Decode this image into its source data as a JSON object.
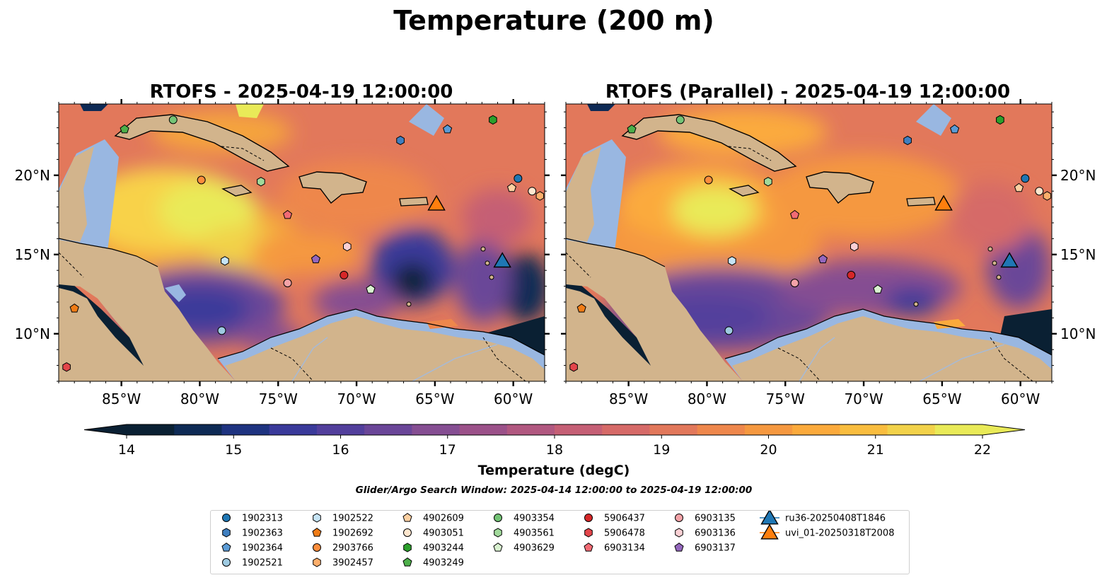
{
  "figure": {
    "suptitle": "Temperature (200 m)",
    "panels": [
      {
        "title": "RTOFS - 2025-04-19 12:00:00",
        "variant": "operational"
      },
      {
        "title": "RTOFS (Parallel) - 2025-04-19 12:00:00",
        "variant": "parallel"
      }
    ],
    "map_extent": {
      "lon_min": -89,
      "lon_max": -58,
      "lat_min": 7,
      "lat_max": 24.5
    },
    "lon_ticks": [
      -85,
      -80,
      -75,
      -70,
      -65,
      -60
    ],
    "lon_tick_labels": [
      "85°W",
      "80°W",
      "75°W",
      "70°W",
      "65°W",
      "60°W"
    ],
    "lat_ticks": [
      10,
      15,
      20
    ],
    "lat_tick_labels": [
      "10°N",
      "15°N",
      "20°N"
    ],
    "colors": {
      "land": "#d2b48c",
      "shelf": "#99b7e1",
      "coast": "#000000",
      "rivers": "#a7bad6"
    }
  },
  "colorbar": {
    "label": "Temperature (degC)",
    "ticks": [
      "14",
      "15",
      "16",
      "17",
      "18",
      "19",
      "20",
      "21",
      "22"
    ],
    "min": 14,
    "max": 22,
    "extend": "both",
    "colors": [
      "#0a2033",
      "#0e2a55",
      "#1e3380",
      "#3a3a9a",
      "#523f9c",
      "#6a4698",
      "#854e92",
      "#9b5189",
      "#b15880",
      "#c55f75",
      "#d66a68",
      "#e2785b",
      "#ee874c",
      "#f59840",
      "#fbaa3c",
      "#f9bd3f",
      "#f2d24a",
      "#e9ea58"
    ]
  },
  "search_window": "Glider/Argo Search Window: 2025-04-14 12:00:00 to 2025-04-19 12:00:00",
  "platforms": [
    {
      "id": "1902313",
      "marker": "circle",
      "color": "#1f77b4",
      "lon": -59.7,
      "lat": 19.8
    },
    {
      "id": "1902363",
      "marker": "hexagon",
      "color": "#3f7fc0",
      "lon": -67.2,
      "lat": 22.2
    },
    {
      "id": "1902364",
      "marker": "pentagon",
      "color": "#5b9bd5",
      "lon": -64.2,
      "lat": 22.9
    },
    {
      "id": "1902521",
      "marker": "circle",
      "color": "#9ecae1",
      "lon": -78.6,
      "lat": 10.2
    },
    {
      "id": "1902522",
      "marker": "hexagon",
      "color": "#c6e4f5",
      "lon": -78.4,
      "lat": 14.6
    },
    {
      "id": "1902692",
      "marker": "pentagon",
      "color": "#f07c16",
      "lon": -88.0,
      "lat": 11.6
    },
    {
      "id": "2903766",
      "marker": "circle",
      "color": "#fd8d3c",
      "lon": -79.9,
      "lat": 19.7
    },
    {
      "id": "3902457",
      "marker": "hexagon",
      "color": "#fdae6b",
      "lon": -58.3,
      "lat": 18.7
    },
    {
      "id": "4902609",
      "marker": "pentagon",
      "color": "#fdd0a2",
      "lon": -60.1,
      "lat": 19.2
    },
    {
      "id": "4903051",
      "marker": "circle",
      "color": "#fee6ce",
      "lon": -58.8,
      "lat": 19.0
    },
    {
      "id": "4903244",
      "marker": "hexagon",
      "color": "#2ca02c",
      "lon": -61.3,
      "lat": 23.5
    },
    {
      "id": "4903249",
      "marker": "pentagon",
      "color": "#4daf4a",
      "lon": -84.8,
      "lat": 22.9
    },
    {
      "id": "4903354",
      "marker": "circle",
      "color": "#74c476",
      "lon": -81.7,
      "lat": 23.5
    },
    {
      "id": "4903561",
      "marker": "hexagon",
      "color": "#a1d99b",
      "lon": -76.1,
      "lat": 19.6
    },
    {
      "id": "4903629",
      "marker": "pentagon",
      "color": "#d9f2d0",
      "lon": -69.1,
      "lat": 12.8
    },
    {
      "id": "5906437",
      "marker": "circle",
      "color": "#d62728",
      "lon": -70.8,
      "lat": 13.7
    },
    {
      "id": "5906478",
      "marker": "hexagon",
      "color": "#e3454a",
      "lon": -88.5,
      "lat": 7.9
    },
    {
      "id": "6903134",
      "marker": "pentagon",
      "color": "#f26b74",
      "lon": -74.4,
      "lat": 17.5
    },
    {
      "id": "6903135",
      "marker": "circle",
      "color": "#f4a3a8",
      "lon": -74.4,
      "lat": 13.2
    },
    {
      "id": "6903136",
      "marker": "hexagon",
      "color": "#fbd0d4",
      "lon": -70.6,
      "lat": 15.5
    },
    {
      "id": "6903137",
      "marker": "pentagon",
      "color": "#9467bd",
      "lon": -72.6,
      "lat": 14.7
    },
    {
      "id": "ru36-20250408T1846",
      "marker": "triangle",
      "color": "#1f77b4",
      "lon": -60.7,
      "lat": 14.6
    },
    {
      "id": "uvi_01-20250318T2008",
      "marker": "triangle",
      "color": "#ff7f0e",
      "lon": -64.9,
      "lat": 18.2
    }
  ]
}
